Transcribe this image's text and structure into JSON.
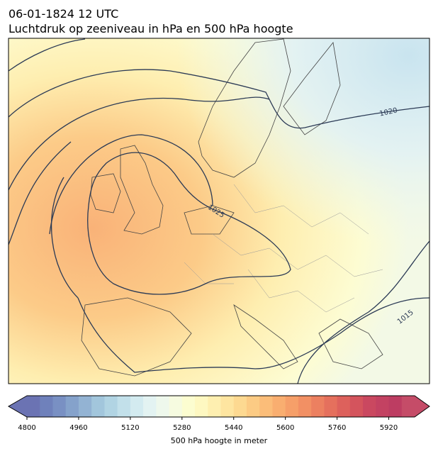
{
  "header": {
    "date": "06-01-1824 12 UTC",
    "title": "Luchtdruk op zeeniveau in hPa en 500 hPa hoogte"
  },
  "map": {
    "contour_labels": [
      "1020",
      "1025",
      "1015"
    ]
  },
  "colorbar": {
    "label": "500 hPa hoogte in meter",
    "range": [
      4800,
      6000
    ],
    "ticks": [
      4800,
      4960,
      5120,
      5280,
      5440,
      5600,
      5760,
      5920
    ],
    "colors": [
      "#6b73b3",
      "#6f81bb",
      "#7990c3",
      "#85a2cb",
      "#93b3d3",
      "#a2c6dc",
      "#b1d4e3",
      "#c2e0ea",
      "#d3ebf0",
      "#e3f3f2",
      "#eef8ec",
      "#f6fbe0",
      "#fcfdd0",
      "#fef8c1",
      "#feefb0",
      "#fee5a0",
      "#fdd991",
      "#fccb84",
      "#fbbd79",
      "#f9ae70",
      "#f69f69",
      "#f29064",
      "#ec8060",
      "#e5705d",
      "#dd615c",
      "#d4545d",
      "#ca4860",
      "#c34262",
      "#bd3d62",
      "#c54c68"
    ],
    "extend": "both"
  }
}
